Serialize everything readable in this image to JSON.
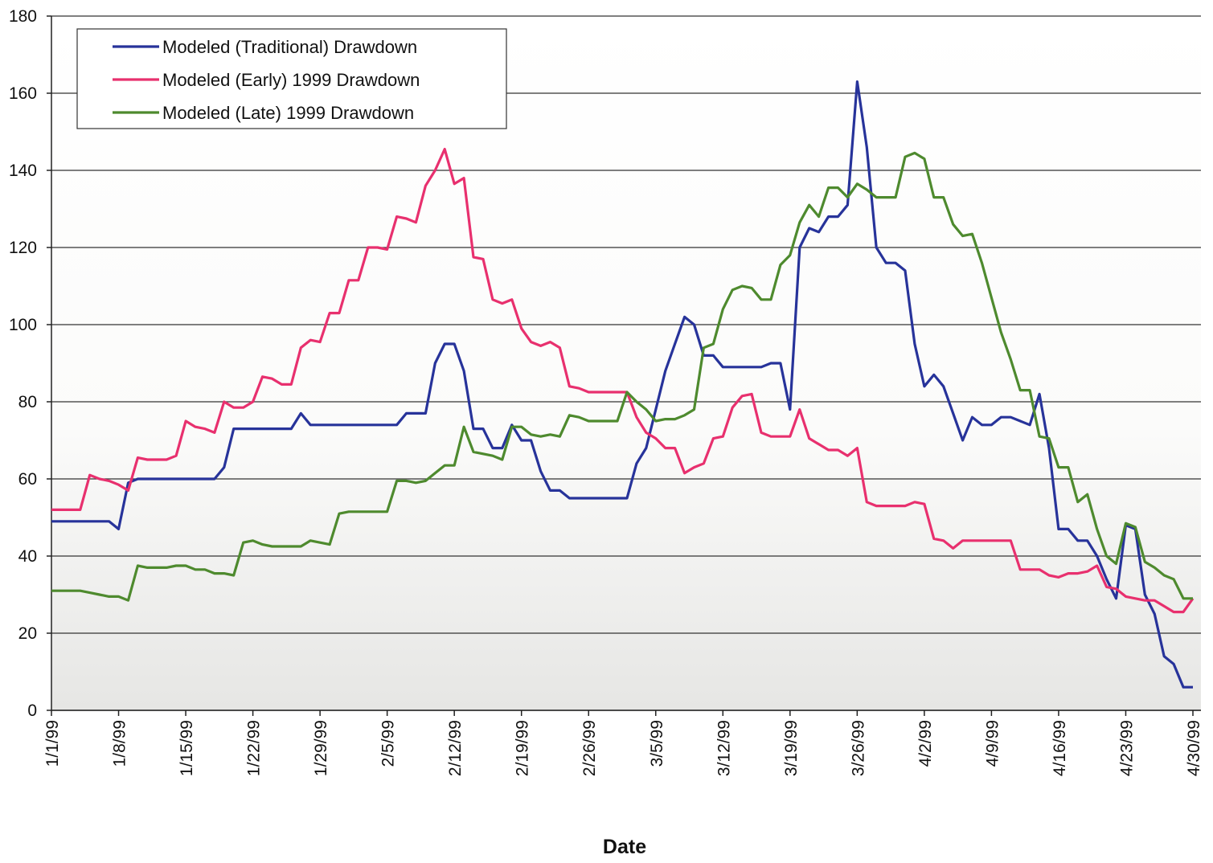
{
  "chart_data": {
    "type": "line",
    "x_label": "Date",
    "categories": [
      "1/1/99",
      null,
      null,
      null,
      null,
      null,
      null,
      "1/8/99",
      null,
      null,
      null,
      null,
      null,
      null,
      "1/15/99",
      null,
      null,
      null,
      null,
      null,
      null,
      "1/22/99",
      null,
      null,
      null,
      null,
      null,
      null,
      "1/29/99",
      null,
      null,
      null,
      null,
      null,
      null,
      "2/5/99",
      null,
      null,
      null,
      null,
      null,
      null,
      "2/12/99",
      null,
      null,
      null,
      null,
      null,
      null,
      "2/19/99",
      null,
      null,
      null,
      null,
      null,
      null,
      "2/26/99",
      null,
      null,
      null,
      null,
      null,
      null,
      "3/5/99",
      null,
      null,
      null,
      null,
      null,
      null,
      "3/12/99",
      null,
      null,
      null,
      null,
      null,
      null,
      "3/19/99",
      null,
      null,
      null,
      null,
      null,
      null,
      "3/26/99",
      null,
      null,
      null,
      null,
      null,
      null,
      "4/2/99",
      null,
      null,
      null,
      null,
      null,
      null,
      "4/9/99",
      null,
      null,
      null,
      null,
      null,
      null,
      "4/16/99",
      null,
      null,
      null,
      null,
      null,
      null,
      "4/23/99",
      null,
      null,
      null,
      null,
      null,
      null,
      "4/30/99"
    ],
    "series": [
      {
        "name": "Modeled (Traditional) Drawdown",
        "color": "#27339a",
        "values": [
          49,
          49,
          49,
          49,
          49,
          49,
          49,
          47,
          59,
          60,
          60,
          60,
          60,
          60,
          60,
          60,
          60,
          60,
          63,
          73,
          73,
          73,
          73,
          73,
          73,
          73,
          77,
          74,
          74,
          74,
          74,
          74,
          74,
          74,
          74,
          74,
          74,
          77,
          77,
          77,
          90,
          95,
          95,
          88,
          73,
          73,
          68,
          68,
          74,
          70,
          70,
          62,
          57,
          57,
          55,
          55,
          55,
          55,
          55,
          55,
          55,
          64,
          68,
          78,
          88,
          95,
          102,
          100,
          92,
          92,
          89,
          89,
          89,
          89,
          89,
          90,
          90,
          78,
          120,
          125,
          124,
          128,
          128,
          131,
          163,
          146,
          120,
          116,
          116,
          114,
          95,
          84,
          87,
          84,
          77,
          70,
          76,
          74,
          74,
          76,
          76,
          75,
          74,
          82,
          68,
          47,
          47,
          44,
          44,
          40,
          34,
          29,
          48,
          47,
          30,
          25,
          14,
          12,
          6,
          6
        ]
      },
      {
        "name": "Modeled (Early) 1999 Drawdown",
        "color": "#e8306e",
        "values": [
          52,
          52,
          52,
          52,
          61,
          60,
          59.5,
          58.5,
          57,
          65.5,
          65,
          65,
          65,
          66,
          75,
          73.5,
          73,
          72,
          80,
          78.5,
          78.5,
          80,
          86.5,
          86,
          84.5,
          84.5,
          94,
          96,
          95.5,
          103,
          103,
          111.5,
          111.5,
          120,
          120,
          119.5,
          128,
          127.5,
          126.5,
          136,
          140,
          145.5,
          136.5,
          138,
          117.5,
          117,
          106.5,
          105.5,
          106.5,
          99,
          95.5,
          94.5,
          95.5,
          94,
          84,
          83.5,
          82.5,
          82.5,
          82.5,
          82.5,
          82.5,
          76,
          72,
          70.5,
          68,
          68,
          61.5,
          63,
          64,
          70.5,
          71,
          78.5,
          81.5,
          82,
          72,
          71,
          71,
          71,
          78,
          70.5,
          69,
          67.5,
          67.5,
          66,
          68,
          54,
          53,
          53,
          53,
          53,
          54,
          53.5,
          44.5,
          44,
          42,
          44,
          44,
          44,
          44,
          44,
          44,
          36.5,
          36.5,
          36.5,
          35,
          34.5,
          35.5,
          35.5,
          36,
          37.5,
          32,
          31.5,
          29.5,
          29,
          28.5,
          28.5,
          27,
          25.5,
          25.5,
          29
        ]
      },
      {
        "name": "Modeled (Late) 1999 Drawdown",
        "color": "#4e8a2e",
        "values": [
          31,
          31,
          31,
          31,
          30.5,
          30,
          29.5,
          29.5,
          28.5,
          37.5,
          37,
          37,
          37,
          37.5,
          37.5,
          36.5,
          36.5,
          35.5,
          35.5,
          35,
          43.5,
          44,
          43,
          42.5,
          42.5,
          42.5,
          42.5,
          44,
          43.5,
          43,
          51,
          51.5,
          51.5,
          51.5,
          51.5,
          51.5,
          59.5,
          59.5,
          59,
          59.5,
          61.5,
          63.5,
          63.5,
          73.5,
          67,
          66.5,
          66,
          65,
          73.5,
          73.5,
          71.5,
          71,
          71.5,
          71,
          76.5,
          76,
          75,
          75,
          75,
          75,
          82.5,
          80,
          78,
          75,
          75.5,
          75.5,
          76.5,
          78,
          94,
          95,
          104,
          109,
          110,
          109.5,
          106.5,
          106.5,
          115.5,
          118,
          126.5,
          131,
          128,
          135.5,
          135.5,
          133,
          136.5,
          135,
          133,
          133,
          133,
          143.5,
          144.5,
          143,
          133,
          133,
          126,
          123,
          123.5,
          116,
          107,
          98,
          91,
          83,
          83,
          71,
          70.5,
          63,
          63,
          54,
          56,
          47,
          40,
          38,
          48.5,
          47.5,
          38.5,
          37,
          35,
          34,
          29,
          29
        ]
      }
    ],
    "ylim": [
      0,
      180
    ],
    "yticks": [
      0,
      20,
      40,
      60,
      80,
      100,
      120,
      140,
      160,
      180
    ],
    "grid": true,
    "legend": "top-left"
  }
}
